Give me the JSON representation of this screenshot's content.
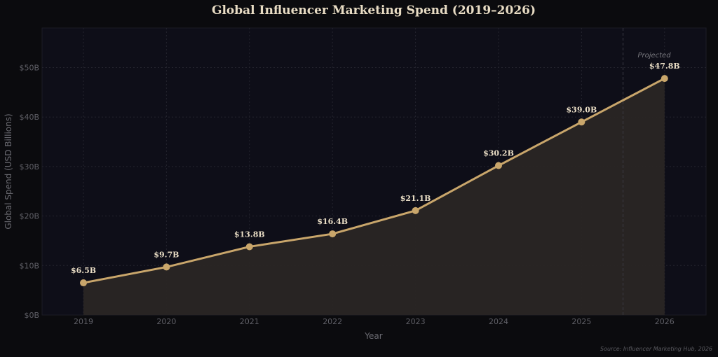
{
  "colors": {
    "background": "#0b0b0e",
    "plot_background": "#0e0e18",
    "line": "#c9a66b",
    "area_fill": "#2a2624",
    "grid": "#24242e",
    "text": "#e8dcc4"
  },
  "chart_data": {
    "type": "line",
    "title": "Global Influencer Marketing Spend (2019–2026)",
    "xlabel": "Year",
    "ylabel": "Global Spend (USD Billions)",
    "categories": [
      "2019",
      "2020",
      "2021",
      "2022",
      "2023",
      "2024",
      "2025",
      "2026"
    ],
    "series": [
      {
        "values": [
          6.5,
          9.7,
          13.8,
          16.4,
          21.1,
          30.2,
          39.0,
          47.8
        ],
        "labels": [
          "$6.5B",
          "$9.7B",
          "$13.8B",
          "$16.4B",
          "$21.1B",
          "$30.2B",
          "$39.0B",
          "$47.8B"
        ]
      }
    ],
    "ylim": [
      0,
      58
    ],
    "yticks": [
      0,
      10,
      20,
      30,
      40,
      50
    ],
    "ytick_labels": [
      "$0B",
      "$10B",
      "$20B",
      "$30B",
      "$40B",
      "$50B"
    ],
    "grid": true,
    "area_fill": true,
    "projection_divider_after": "2025",
    "annotation": "Projected",
    "source": "Source: Influencer Marketing Hub, 2026"
  }
}
